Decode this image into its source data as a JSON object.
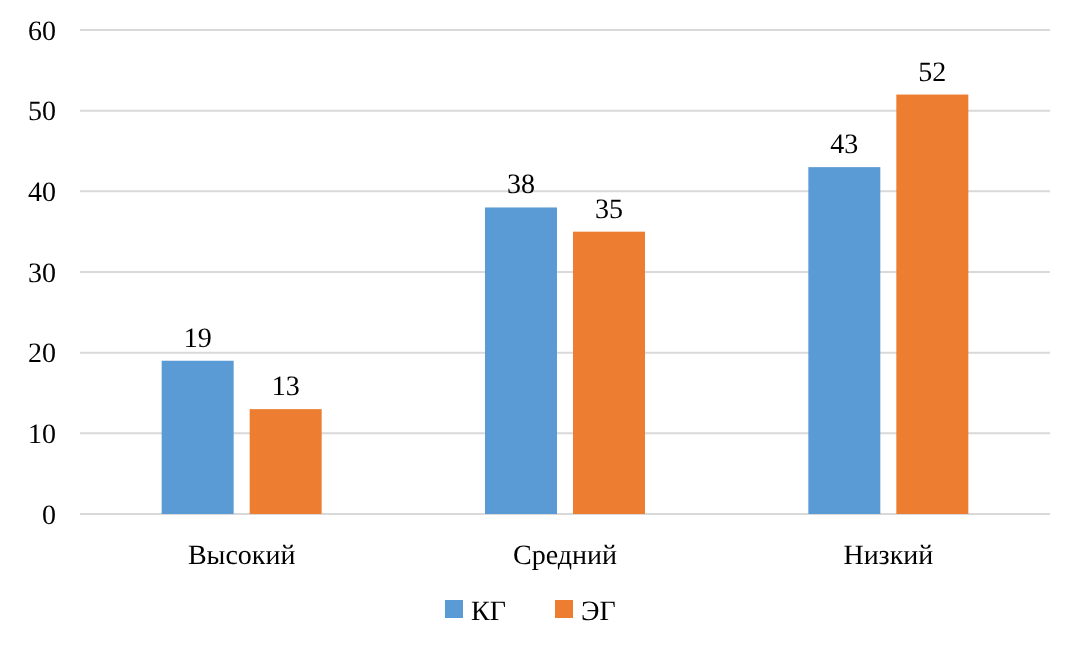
{
  "chart_data": {
    "type": "bar",
    "categories": [
      "Высокий",
      "Средний",
      "Низкий"
    ],
    "series": [
      {
        "name": "КГ",
        "color": "#5b9bd5",
        "values": [
          19,
          38,
          43
        ]
      },
      {
        "name": "ЭГ",
        "color": "#ed7d31",
        "values": [
          13,
          35,
          52
        ]
      }
    ],
    "ylim": [
      0,
      60
    ],
    "yticks": [
      0,
      10,
      20,
      30,
      40,
      50,
      60
    ],
    "grid": "y",
    "legend": "bottom",
    "data_labels": true
  }
}
